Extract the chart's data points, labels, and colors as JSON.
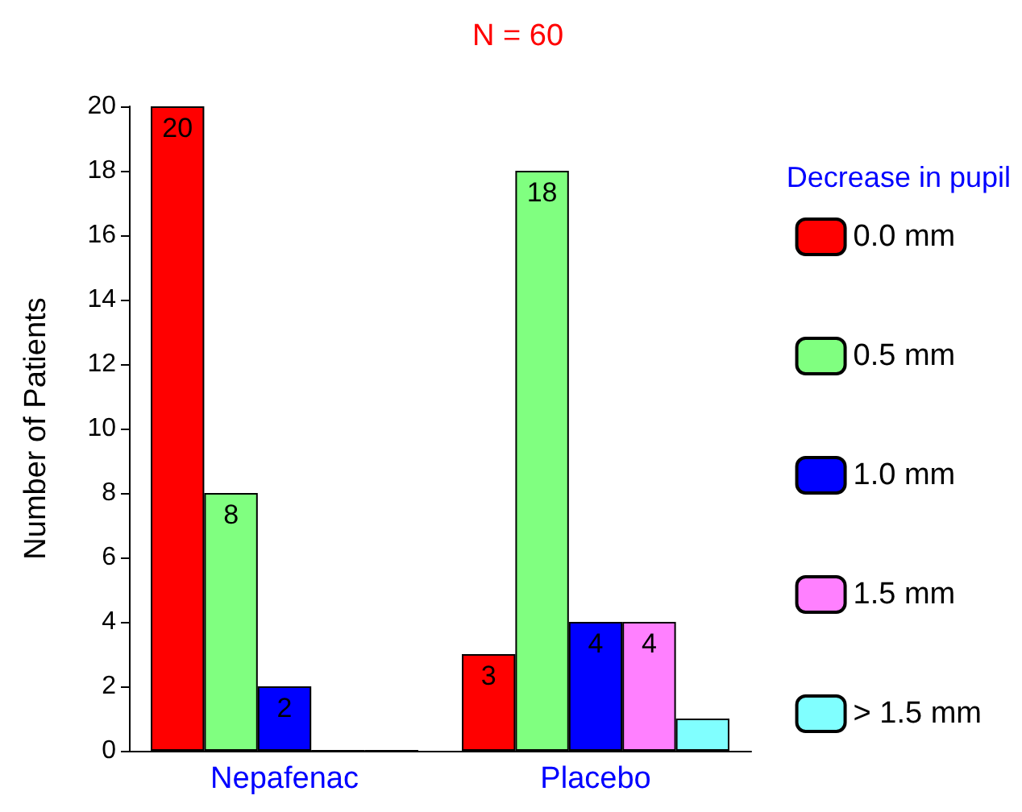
{
  "chart_data": {
    "type": "bar",
    "title": "N = 60",
    "ylabel": "Number of Patients",
    "legend_title": "Decrease in pupil",
    "categories": [
      "Nepafenac",
      "Placebo"
    ],
    "series": [
      {
        "name": "0.0 mm",
        "color": "#ff0000",
        "values": [
          20,
          3
        ],
        "value_labels": [
          "20",
          "3"
        ]
      },
      {
        "name": "0.5 mm",
        "color": "#80ff80",
        "values": [
          8,
          18
        ],
        "value_labels": [
          "8",
          "18"
        ]
      },
      {
        "name": "1.0 mm",
        "color": "#0000ff",
        "values": [
          2,
          4
        ],
        "value_labels": [
          "2",
          "4"
        ]
      },
      {
        "name": "1.5 mm",
        "color": "#ff80ff",
        "values": [
          0,
          4
        ],
        "value_labels": [
          null,
          "4"
        ]
      },
      {
        "name": "> 1.5 mm",
        "color": "#80ffff",
        "values": [
          0,
          1
        ],
        "value_labels": [
          null,
          null
        ]
      }
    ],
    "ylim": [
      0,
      20
    ],
    "yticks": [
      0,
      2,
      4,
      6,
      8,
      10,
      12,
      14,
      16,
      18,
      20
    ],
    "grid": false,
    "legend": "right"
  }
}
